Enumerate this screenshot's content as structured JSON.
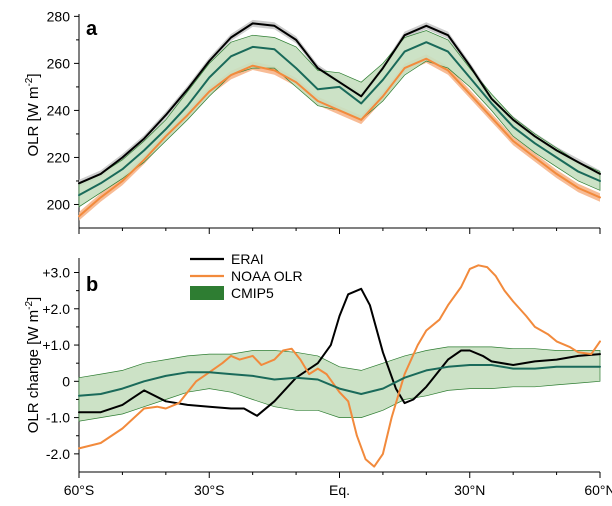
{
  "chart_data": [
    {
      "type": "line",
      "panel_label": "a",
      "ylabel": "OLR  [W m",
      "ylabel_exp": "-2",
      "ylabel_close": "]",
      "ylim": [
        190,
        281
      ],
      "xlim": [
        -60,
        60
      ],
      "y_ticks": [
        200,
        220,
        240,
        260,
        280
      ],
      "y_tick_labels": [
        "200",
        "220",
        "240",
        "260",
        "280"
      ],
      "x": [
        -60,
        -55,
        -50,
        -45,
        -40,
        -35,
        -30,
        -25,
        -20,
        -15,
        -10,
        -5,
        0,
        5,
        10,
        15,
        20,
        25,
        30,
        35,
        40,
        45,
        50,
        55,
        60
      ],
      "series": [
        {
          "name": "ERAI",
          "color": "#000000",
          "band_color": "#c8c8c8",
          "values": [
            209,
            213,
            220,
            228,
            238,
            249,
            261,
            271,
            277,
            276,
            270,
            258,
            252,
            246,
            258,
            272,
            276,
            272,
            259,
            245,
            236,
            229,
            223,
            218,
            213
          ],
          "band": 1.5
        },
        {
          "name": "NOAA OLR",
          "color": "#f28a3c",
          "band_color": "#f6b58b",
          "values": [
            195,
            203,
            210,
            219,
            229,
            238,
            248,
            255,
            259,
            257,
            252,
            244,
            240,
            236,
            246,
            258,
            262,
            257,
            247,
            237,
            227,
            220,
            213,
            207,
            203
          ],
          "band": 1.8
        },
        {
          "name": "CMIP5",
          "color": "#1a6a5a",
          "band_color": "#c6dfc0",
          "band_edge": "#2e7d32",
          "values": [
            204,
            209,
            215,
            223,
            232,
            242,
            254,
            263,
            267,
            266,
            258,
            249,
            250,
            243,
            253,
            265,
            269,
            265,
            254,
            243,
            233,
            226,
            220,
            214,
            210
          ],
          "lower": [
            199,
            205,
            211,
            218,
            227,
            236,
            246,
            255,
            258,
            258,
            250,
            242,
            240,
            236,
            244,
            255,
            261,
            258,
            250,
            240,
            229,
            222,
            216,
            210,
            206
          ],
          "upper": [
            209,
            213,
            219,
            227,
            236,
            248,
            260,
            269,
            272,
            271,
            267,
            257,
            256,
            252,
            260,
            271,
            274,
            270,
            258,
            247,
            237,
            230,
            224,
            218,
            214
          ]
        }
      ]
    },
    {
      "type": "line",
      "panel_label": "b",
      "ylabel": "OLR change  [W m",
      "ylabel_exp": "-2",
      "ylabel_close": "]",
      "ylim": [
        -2.5,
        3.4
      ],
      "xlim": [
        -60,
        60
      ],
      "y_ticks": [
        -2,
        -1,
        0,
        1,
        2,
        3
      ],
      "y_tick_labels": [
        "-2.0",
        "-1.0",
        "0",
        "+1.0",
        "+2.0",
        "+3.0"
      ],
      "x_ticks": [
        -60,
        -30,
        0,
        30,
        60
      ],
      "x_tick_labels": [
        "60°S",
        "30°S",
        "Eq.",
        "30°N",
        "60°N"
      ],
      "legend": {
        "position": "top-center",
        "entries": [
          {
            "label": "ERAI",
            "kind": "line",
            "color": "#000000"
          },
          {
            "label": "NOAA OLR",
            "kind": "line",
            "color": "#f28a3c"
          },
          {
            "label": "CMIP5",
            "kind": "patch",
            "color": "#2e7d32"
          }
        ]
      },
      "series": [
        {
          "name": "ERAI",
          "color": "#000000",
          "x": [
            -60,
            -55,
            -50,
            -45,
            -40,
            -35,
            -30,
            -25,
            -22,
            -19,
            -15,
            -10,
            -5,
            -2,
            0,
            2,
            5,
            7,
            10,
            13,
            15,
            17,
            20,
            23,
            25,
            28,
            30,
            33,
            35,
            40,
            45,
            50,
            55,
            60
          ],
          "values": [
            -0.85,
            -0.85,
            -0.65,
            -0.25,
            -0.55,
            -0.65,
            -0.7,
            -0.75,
            -0.75,
            -0.95,
            -0.55,
            0.1,
            0.5,
            1.0,
            1.8,
            2.4,
            2.55,
            2.1,
            0.8,
            -0.2,
            -0.6,
            -0.5,
            -0.15,
            0.3,
            0.6,
            0.85,
            0.85,
            0.7,
            0.55,
            0.45,
            0.55,
            0.6,
            0.7,
            0.75
          ]
        },
        {
          "name": "NOAA OLR",
          "color": "#f28a3c",
          "x": [
            -60,
            -55,
            -50,
            -45,
            -42,
            -40,
            -37,
            -35,
            -33,
            -30,
            -27,
            -25,
            -23,
            -20,
            -18,
            -15,
            -13,
            -11,
            -9,
            -7,
            -5,
            -3,
            0,
            2,
            4,
            6,
            8,
            10,
            12,
            15,
            18,
            20,
            23,
            25,
            28,
            30,
            32,
            34,
            36,
            38,
            40,
            43,
            45,
            48,
            50,
            53,
            55,
            58,
            60
          ],
          "values": [
            -1.85,
            -1.7,
            -1.3,
            -0.75,
            -0.7,
            -0.75,
            -0.6,
            -0.3,
            0.0,
            0.25,
            0.5,
            0.7,
            0.6,
            0.7,
            0.45,
            0.6,
            0.85,
            0.9,
            0.6,
            0.2,
            0.35,
            0.2,
            -0.3,
            -0.55,
            -1.5,
            -2.15,
            -2.35,
            -2.0,
            -1.0,
            0.2,
            1.0,
            1.4,
            1.7,
            2.1,
            2.6,
            3.1,
            3.2,
            3.15,
            2.9,
            2.5,
            2.2,
            1.8,
            1.5,
            1.3,
            1.1,
            0.95,
            0.8,
            0.75,
            1.1
          ]
        },
        {
          "name": "CMIP5",
          "color": "#1a6a5a",
          "band_color": "#c6dfc0",
          "band_edge": "#2e7d32",
          "x": [
            -60,
            -55,
            -50,
            -45,
            -40,
            -35,
            -30,
            -25,
            -20,
            -15,
            -10,
            -5,
            0,
            5,
            10,
            15,
            20,
            25,
            30,
            35,
            40,
            45,
            50,
            55,
            60
          ],
          "values": [
            -0.4,
            -0.35,
            -0.2,
            0.0,
            0.15,
            0.25,
            0.25,
            0.2,
            0.15,
            0.05,
            0.1,
            0.05,
            -0.2,
            -0.35,
            -0.2,
            0.1,
            0.3,
            0.4,
            0.45,
            0.45,
            0.35,
            0.35,
            0.4,
            0.4,
            0.4
          ],
          "lower": [
            -1.1,
            -1.0,
            -0.9,
            -0.7,
            -0.5,
            -0.3,
            -0.2,
            -0.3,
            -0.5,
            -0.7,
            -0.8,
            -0.8,
            -1.0,
            -1.0,
            -0.8,
            -0.5,
            -0.4,
            -0.25,
            -0.2,
            -0.2,
            -0.15,
            -0.15,
            -0.1,
            -0.05,
            0.0
          ],
          "upper": [
            0.1,
            0.2,
            0.3,
            0.5,
            0.6,
            0.7,
            0.75,
            0.75,
            0.85,
            0.85,
            0.8,
            0.7,
            0.4,
            0.3,
            0.5,
            0.7,
            0.85,
            0.95,
            0.95,
            0.95,
            0.9,
            0.9,
            0.85,
            0.85,
            0.85
          ]
        }
      ]
    }
  ]
}
